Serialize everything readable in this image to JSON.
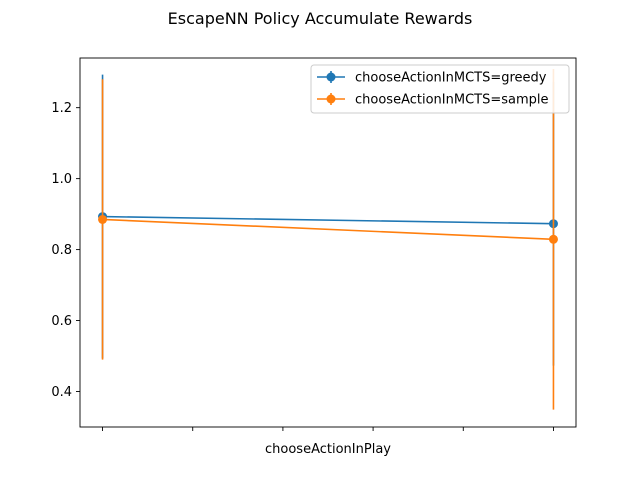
{
  "chart_data": {
    "type": "line",
    "title": "EscapeNN Policy Accumulate Rewards",
    "xlabel": "chooseActionInPlay",
    "ylabel": "",
    "x_ticks": [
      "",
      "",
      "",
      "",
      "",
      ""
    ],
    "x": [
      0,
      1
    ],
    "xlim": [
      -0.05,
      1.05
    ],
    "ylim": [
      0.3,
      1.34
    ],
    "y_ticks": [
      0.4,
      0.6,
      0.8,
      1.0,
      1.2
    ],
    "y_tick_labels": [
      "0.4",
      "0.6",
      "0.8",
      "1.0",
      "1.2"
    ],
    "grid": false,
    "legend_position": "top-right",
    "series": [
      {
        "name": "chooseActionInMCTS=greedy",
        "color": "#1f77b4",
        "values": [
          0.893,
          0.873
        ],
        "errors": [
          0.4,
          0.4
        ]
      },
      {
        "name": "chooseActionInMCTS=sample",
        "color": "#ff7f0e",
        "values": [
          0.885,
          0.829
        ],
        "errors": [
          0.395,
          0.48
        ]
      }
    ]
  }
}
